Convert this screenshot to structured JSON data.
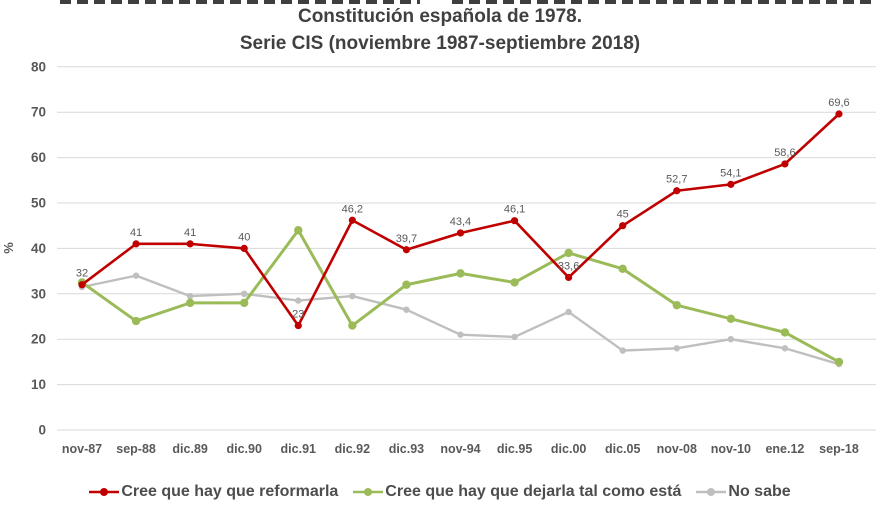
{
  "header": {
    "title_line1": "Constitución española de 1978.",
    "title_line2": "Serie CIS (noviembre 1987-septiembre 2018)"
  },
  "chart_data": {
    "type": "line",
    "title": "Constitución española de 1978. Serie CIS (noviembre 1987-septiembre 2018)",
    "xlabel": "",
    "ylabel": "%",
    "ylim": [
      0,
      80
    ],
    "ytick_step": 10,
    "grid": true,
    "legend_position": "bottom",
    "categories": [
      "nov-87",
      "sep-88",
      "dic.89",
      "dic.90",
      "dic.91",
      "dic.92",
      "dic.93",
      "nov-94",
      "dic.95",
      "dic.00",
      "dic.05",
      "nov-08",
      "nov-10",
      "ene.12",
      "sep-18"
    ],
    "series": [
      {
        "name": "Cree que hay que reformarla",
        "color": "#C00000",
        "values": [
          32,
          41,
          41,
          40,
          23,
          46.2,
          39.7,
          43.4,
          46.1,
          33.6,
          45,
          52.7,
          54.1,
          58.6,
          69.6
        ],
        "labels": [
          "32",
          "41",
          "41",
          "40",
          "23",
          "46,2",
          "39,7",
          "43,4",
          "46,1",
          "33,6",
          "45",
          "52,7",
          "54,1",
          "58,6",
          "69,6"
        ],
        "show_labels": true
      },
      {
        "name": "Cree que hay que dejarla tal como está",
        "color": "#9BBB59",
        "values": [
          32.5,
          24,
          28,
          28,
          44,
          23,
          32,
          34.5,
          32.5,
          39,
          35.5,
          27.5,
          24.5,
          21.5,
          15
        ],
        "labels": [],
        "show_labels": false
      },
      {
        "name": "No sabe",
        "color": "#BFBFBF",
        "values": [
          31.5,
          34,
          29.5,
          30,
          28.5,
          29.5,
          26.5,
          21,
          20.5,
          26,
          17.5,
          18,
          20,
          18,
          14.5
        ],
        "labels": [],
        "show_labels": false
      }
    ],
    "colors": {
      "gridline": "#D9D9D9",
      "axis_text": "#595959",
      "data_label_text": "#595959",
      "title_text": "#404040"
    }
  }
}
